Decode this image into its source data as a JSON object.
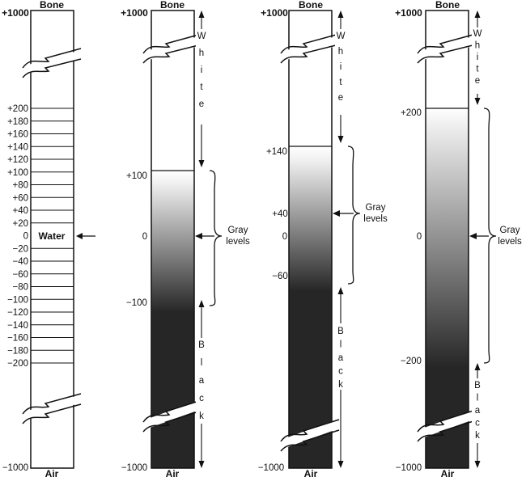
{
  "labels": {
    "top": "Bone",
    "bottom": "Air",
    "max": "+1000",
    "min": "−1000",
    "water": "Water",
    "gray_levels_line1": "Gray",
    "gray_levels_line2": "levels",
    "white": "White",
    "black": "Black"
  },
  "scale_ticks": [
    "+200",
    "+180",
    "+160",
    "+140",
    "+120",
    "+100",
    "+80",
    "+60",
    "+40",
    "+20",
    "0",
    "−20",
    "−40",
    "−60",
    "−80",
    "−100",
    "−120",
    "−140",
    "−160",
    "−180",
    "−200"
  ],
  "windows": [
    {
      "upper": "+100",
      "level": "0",
      "lower": "−100"
    },
    {
      "upper": "+140",
      "level": "+40",
      "zero": "0",
      "lower": "−60"
    },
    {
      "upper": "+200",
      "level": "0",
      "lower": "−200"
    }
  ]
}
